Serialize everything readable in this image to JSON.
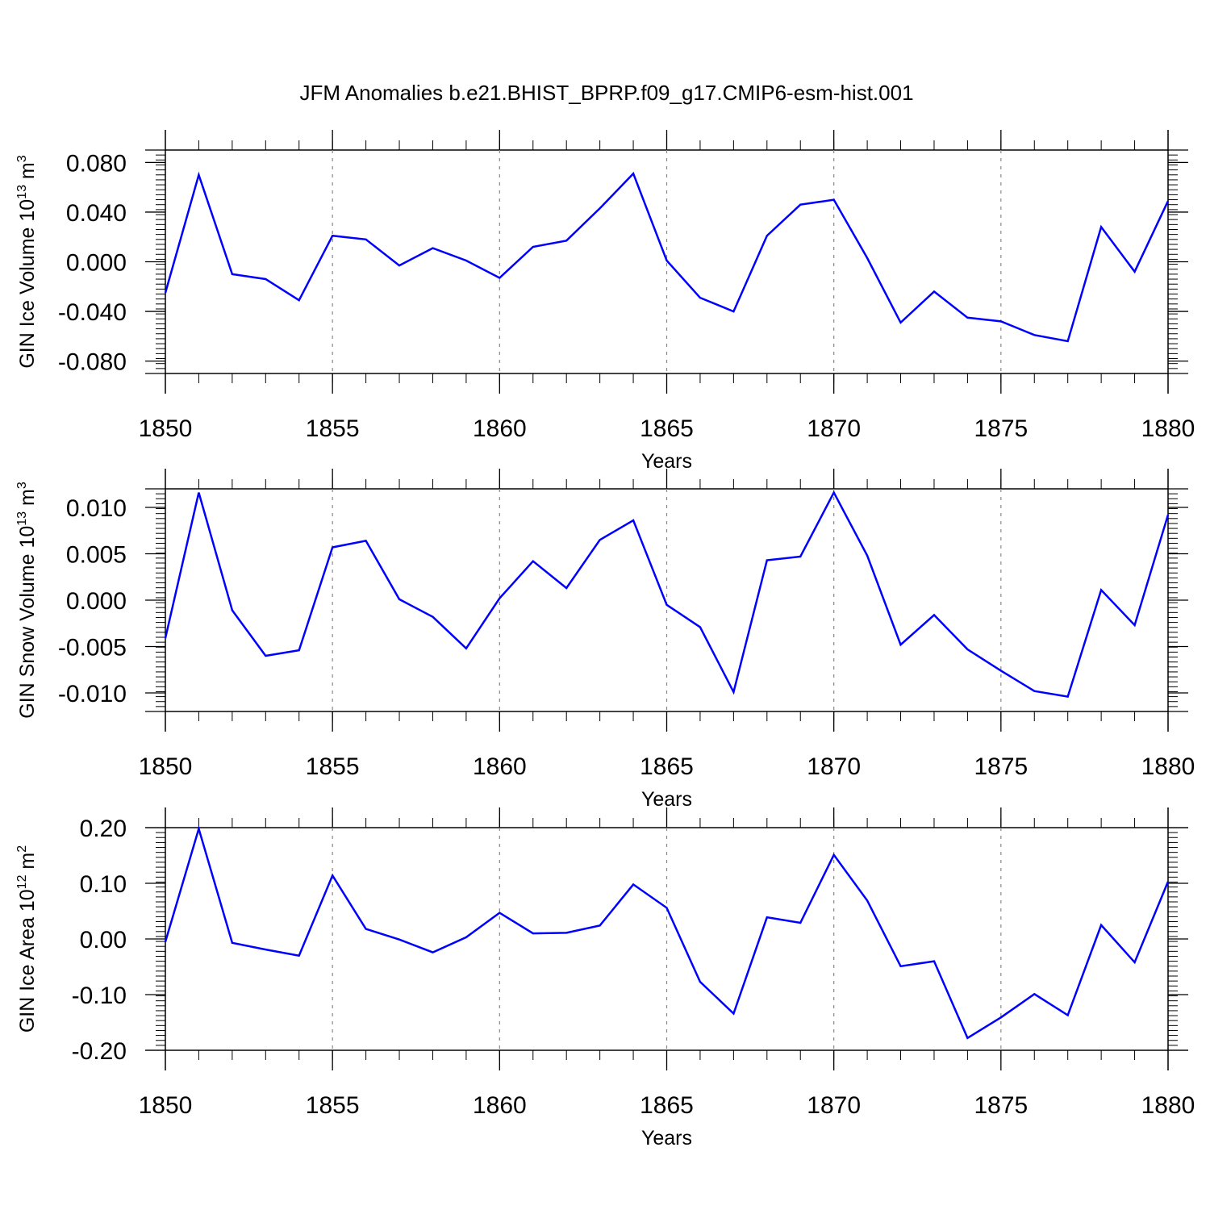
{
  "title": "JFM Anomalies b.e21.BHIST_BPRP.f09_g17.CMIP6-esm-hist.001",
  "line_color": "#0000ff",
  "chart_data": [
    {
      "type": "line",
      "ylabel": "GIN Ice Volume 10",
      "ylabel_sup": "13",
      "ylabel_unit": "m",
      "ylabel_unit_sup": "3",
      "xlabel": "Years",
      "xlim": [
        1850,
        1880
      ],
      "ylim": [
        -0.09,
        0.09
      ],
      "x_ticks": [
        "1850",
        "1855",
        "1860",
        "1865",
        "1870",
        "1875",
        "1880"
      ],
      "y_ticks": [
        "-0.080",
        "-0.040",
        "0.000",
        "0.040",
        "0.080"
      ],
      "x": [
        1850,
        1851,
        1852,
        1853,
        1854,
        1855,
        1856,
        1857,
        1858,
        1859,
        1860,
        1861,
        1862,
        1863,
        1864,
        1865,
        1866,
        1867,
        1868,
        1869,
        1870,
        1871,
        1872,
        1873,
        1874,
        1875,
        1876,
        1877,
        1878,
        1879,
        1880
      ],
      "series": [
        {
          "values": [
            -0.025,
            0.07,
            -0.01,
            -0.014,
            -0.031,
            0.021,
            0.018,
            -0.003,
            0.011,
            0.001,
            -0.013,
            0.012,
            0.017,
            0.043,
            0.071,
            0.001,
            -0.029,
            -0.04,
            0.021,
            0.046,
            0.05,
            0.003,
            -0.049,
            -0.024,
            -0.045,
            -0.048,
            -0.059,
            -0.064,
            0.028,
            -0.008,
            0.049
          ]
        }
      ]
    },
    {
      "type": "line",
      "ylabel": "GIN Snow Volume 10",
      "ylabel_sup": "13",
      "ylabel_unit": "m",
      "ylabel_unit_sup": "3",
      "xlabel": "Years",
      "xlim": [
        1850,
        1880
      ],
      "ylim": [
        -0.012,
        0.012
      ],
      "x_ticks": [
        "1850",
        "1855",
        "1860",
        "1865",
        "1870",
        "1875",
        "1880"
      ],
      "y_ticks": [
        "-0.010",
        "-0.005",
        "0.000",
        "0.005",
        "0.010"
      ],
      "x": [
        1850,
        1851,
        1852,
        1853,
        1854,
        1855,
        1856,
        1857,
        1858,
        1859,
        1860,
        1861,
        1862,
        1863,
        1864,
        1865,
        1866,
        1867,
        1868,
        1869,
        1870,
        1871,
        1872,
        1873,
        1874,
        1875,
        1876,
        1877,
        1878,
        1879,
        1880
      ],
      "series": [
        {
          "values": [
            -0.0041,
            0.0116,
            -0.0011,
            -0.006,
            -0.0054,
            0.0057,
            0.0064,
            0.0001,
            -0.0018,
            -0.0052,
            0.0002,
            0.0042,
            0.0013,
            0.0065,
            0.0086,
            -0.0005,
            -0.0029,
            -0.0099,
            0.0043,
            0.0047,
            0.0116,
            0.0048,
            -0.0048,
            -0.0016,
            -0.0053,
            -0.0076,
            -0.0098,
            -0.0104,
            0.0011,
            -0.0027,
            0.0092
          ]
        }
      ]
    },
    {
      "type": "line",
      "ylabel": "GIN Ice Area 10",
      "ylabel_sup": "12",
      "ylabel_unit": "m",
      "ylabel_unit_sup": "2",
      "xlabel": "Years",
      "xlim": [
        1850,
        1880
      ],
      "ylim": [
        -0.2,
        0.2
      ],
      "x_ticks": [
        "1850",
        "1855",
        "1860",
        "1865",
        "1870",
        "1875",
        "1880"
      ],
      "y_ticks": [
        "-0.20",
        "-0.10",
        "0.00",
        "0.10",
        "0.20"
      ],
      "x": [
        1850,
        1851,
        1852,
        1853,
        1854,
        1855,
        1856,
        1857,
        1858,
        1859,
        1860,
        1861,
        1862,
        1863,
        1864,
        1865,
        1866,
        1867,
        1868,
        1869,
        1870,
        1871,
        1872,
        1873,
        1874,
        1875,
        1876,
        1877,
        1878,
        1879,
        1880
      ],
      "series": [
        {
          "values": [
            -0.005,
            0.198,
            -0.007,
            -0.019,
            -0.03,
            0.114,
            0.018,
            -0.001,
            -0.024,
            0.003,
            0.047,
            0.01,
            0.011,
            0.024,
            0.098,
            0.056,
            -0.077,
            -0.134,
            0.039,
            0.029,
            0.151,
            0.069,
            -0.049,
            -0.04,
            -0.178,
            -0.141,
            -0.099,
            -0.137,
            0.025,
            -0.042,
            0.103
          ]
        }
      ]
    }
  ]
}
